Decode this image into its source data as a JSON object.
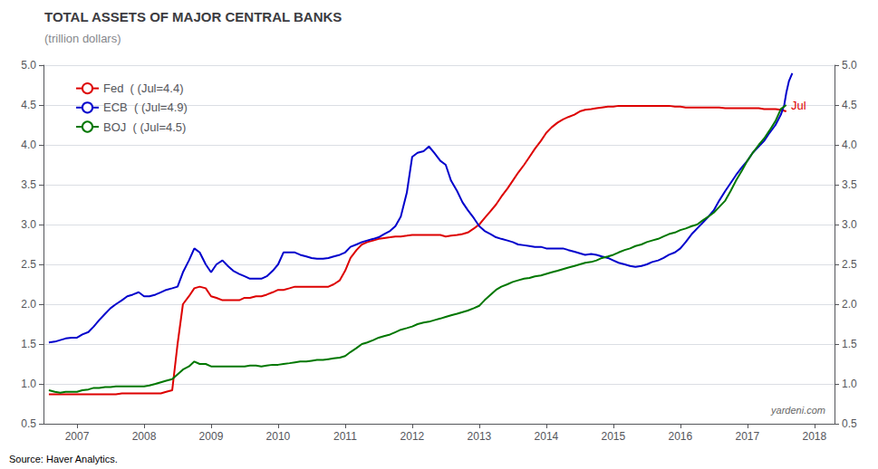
{
  "chart_data": {
    "type": "line",
    "title": "TOTAL ASSETS OF MAJOR CENTRAL BANKS",
    "subtitle": "(trillion dollars)",
    "source": "Source: Haver Analytics.",
    "watermark": "yardeni.com",
    "xlim": [
      2006.5,
      2018.3
    ],
    "xticks": [
      2007,
      2008,
      2009,
      2010,
      2011,
      2012,
      2013,
      2014,
      2015,
      2016,
      2017,
      2018
    ],
    "ylim": [
      0.5,
      5.0
    ],
    "yticks": [
      0.5,
      {
        "value": 1.0,
        "label": "1.0"
      },
      1.5,
      {
        "value": 2.0,
        "label": "2.0"
      },
      2.5,
      {
        "value": 3.0,
        "label": "3.0"
      },
      3.5,
      {
        "value": 4.0,
        "label": "4.0"
      },
      4.5,
      {
        "value": 5.0,
        "label": "5.0"
      }
    ],
    "y2lim": [
      0.5,
      5.0
    ],
    "y2ticks": [
      0.5,
      {
        "value": 1.0,
        "label": "1.0"
      },
      1.5,
      {
        "value": 2.0,
        "label": "2.0"
      },
      2.5,
      {
        "value": 3.0,
        "label": "3.0"
      },
      3.5,
      {
        "value": 4.0,
        "label": "4.0"
      },
      4.5,
      {
        "value": 5.0,
        "label": "5.0"
      }
    ],
    "grid": true,
    "legend": "upper left",
    "annotations": [
      {
        "text": "Jul",
        "x": 2017.65,
        "y": 4.5,
        "color": "#dd0000"
      }
    ],
    "series": [
      {
        "name": "Fed  ( (Jul=4.4)",
        "color": "#dd0000",
        "x": [
          2006.58,
          2006.67,
          2006.75,
          2006.83,
          2006.92,
          2007.0,
          2007.08,
          2007.17,
          2007.25,
          2007.33,
          2007.42,
          2007.5,
          2007.58,
          2007.67,
          2007.75,
          2007.83,
          2007.92,
          2008.0,
          2008.08,
          2008.17,
          2008.25,
          2008.33,
          2008.42,
          2008.5,
          2008.58,
          2008.67,
          2008.75,
          2008.83,
          2008.92,
          2009.0,
          2009.08,
          2009.17,
          2009.25,
          2009.33,
          2009.42,
          2009.5,
          2009.58,
          2009.67,
          2009.75,
          2009.83,
          2009.92,
          2010.0,
          2010.08,
          2010.17,
          2010.25,
          2010.33,
          2010.42,
          2010.5,
          2010.58,
          2010.67,
          2010.75,
          2010.83,
          2010.92,
          2011.0,
          2011.08,
          2011.17,
          2011.25,
          2011.33,
          2011.42,
          2011.5,
          2011.58,
          2011.67,
          2011.75,
          2011.83,
          2011.92,
          2012.0,
          2012.08,
          2012.17,
          2012.25,
          2012.33,
          2012.42,
          2012.5,
          2012.58,
          2012.67,
          2012.75,
          2012.83,
          2012.92,
          2013.0,
          2013.08,
          2013.17,
          2013.25,
          2013.33,
          2013.42,
          2013.5,
          2013.58,
          2013.67,
          2013.75,
          2013.83,
          2013.92,
          2014.0,
          2014.08,
          2014.17,
          2014.25,
          2014.33,
          2014.42,
          2014.5,
          2014.58,
          2014.67,
          2014.75,
          2014.83,
          2014.92,
          2015.0,
          2015.08,
          2015.17,
          2015.25,
          2015.33,
          2015.42,
          2015.5,
          2015.58,
          2015.67,
          2015.75,
          2015.83,
          2015.92,
          2016.0,
          2016.08,
          2016.17,
          2016.25,
          2016.33,
          2016.42,
          2016.5,
          2016.58,
          2016.67,
          2016.75,
          2016.83,
          2016.92,
          2017.0,
          2017.08,
          2017.17,
          2017.25,
          2017.33,
          2017.42,
          2017.5,
          2017.58
        ],
        "values": [
          0.87,
          0.87,
          0.87,
          0.87,
          0.87,
          0.87,
          0.87,
          0.87,
          0.87,
          0.87,
          0.87,
          0.87,
          0.87,
          0.88,
          0.88,
          0.88,
          0.88,
          0.88,
          0.88,
          0.88,
          0.88,
          0.9,
          0.92,
          1.5,
          2.0,
          2.1,
          2.2,
          2.22,
          2.2,
          2.1,
          2.08,
          2.05,
          2.05,
          2.05,
          2.05,
          2.08,
          2.08,
          2.1,
          2.1,
          2.12,
          2.15,
          2.18,
          2.18,
          2.2,
          2.22,
          2.22,
          2.22,
          2.22,
          2.22,
          2.22,
          2.22,
          2.25,
          2.3,
          2.42,
          2.58,
          2.68,
          2.75,
          2.78,
          2.8,
          2.82,
          2.83,
          2.84,
          2.85,
          2.85,
          2.86,
          2.87,
          2.87,
          2.87,
          2.87,
          2.87,
          2.87,
          2.85,
          2.86,
          2.87,
          2.88,
          2.9,
          2.95,
          3.0,
          3.08,
          3.17,
          3.25,
          3.35,
          3.45,
          3.55,
          3.65,
          3.75,
          3.85,
          3.95,
          4.05,
          4.15,
          4.22,
          4.28,
          4.32,
          4.35,
          4.38,
          4.42,
          4.44,
          4.45,
          4.46,
          4.47,
          4.48,
          4.48,
          4.49,
          4.49,
          4.49,
          4.49,
          4.49,
          4.49,
          4.49,
          4.49,
          4.49,
          4.49,
          4.48,
          4.48,
          4.47,
          4.47,
          4.47,
          4.47,
          4.47,
          4.47,
          4.47,
          4.46,
          4.46,
          4.46,
          4.46,
          4.46,
          4.46,
          4.46,
          4.45,
          4.45,
          4.45,
          4.44,
          4.42
        ]
      },
      {
        "name": "ECB  ( (Jul=4.9)",
        "color": "#0000cc",
        "x": [
          2006.58,
          2006.67,
          2006.75,
          2006.83,
          2006.92,
          2007.0,
          2007.08,
          2007.17,
          2007.25,
          2007.33,
          2007.42,
          2007.5,
          2007.58,
          2007.67,
          2007.75,
          2007.83,
          2007.92,
          2008.0,
          2008.08,
          2008.17,
          2008.25,
          2008.33,
          2008.42,
          2008.5,
          2008.58,
          2008.67,
          2008.75,
          2008.83,
          2008.92,
          2009.0,
          2009.08,
          2009.17,
          2009.25,
          2009.33,
          2009.42,
          2009.5,
          2009.58,
          2009.67,
          2009.75,
          2009.83,
          2009.92,
          2010.0,
          2010.08,
          2010.17,
          2010.25,
          2010.33,
          2010.42,
          2010.5,
          2010.58,
          2010.67,
          2010.75,
          2010.83,
          2010.92,
          2011.0,
          2011.08,
          2011.17,
          2011.25,
          2011.33,
          2011.42,
          2011.5,
          2011.58,
          2011.67,
          2011.75,
          2011.83,
          2011.92,
          2012.0,
          2012.08,
          2012.17,
          2012.25,
          2012.33,
          2012.42,
          2012.5,
          2012.58,
          2012.67,
          2012.75,
          2012.83,
          2012.92,
          2013.0,
          2013.08,
          2013.17,
          2013.25,
          2013.33,
          2013.42,
          2013.5,
          2013.58,
          2013.67,
          2013.75,
          2013.83,
          2013.92,
          2014.0,
          2014.08,
          2014.17,
          2014.25,
          2014.33,
          2014.42,
          2014.5,
          2014.58,
          2014.67,
          2014.75,
          2014.83,
          2014.92,
          2015.0,
          2015.08,
          2015.17,
          2015.25,
          2015.33,
          2015.42,
          2015.5,
          2015.58,
          2015.67,
          2015.75,
          2015.83,
          2015.92,
          2016.0,
          2016.08,
          2016.17,
          2016.25,
          2016.33,
          2016.42,
          2016.5,
          2016.58,
          2016.67,
          2016.75,
          2016.83,
          2016.92,
          2017.0,
          2017.08,
          2017.17,
          2017.25,
          2017.33,
          2017.42,
          2017.5,
          2017.55,
          2017.58,
          2017.62,
          2017.67
        ],
        "values": [
          1.52,
          1.53,
          1.55,
          1.57,
          1.58,
          1.58,
          1.62,
          1.65,
          1.72,
          1.8,
          1.88,
          1.95,
          2.0,
          2.05,
          2.1,
          2.12,
          2.15,
          2.1,
          2.1,
          2.12,
          2.15,
          2.18,
          2.2,
          2.22,
          2.4,
          2.55,
          2.7,
          2.65,
          2.5,
          2.4,
          2.5,
          2.55,
          2.48,
          2.42,
          2.38,
          2.35,
          2.32,
          2.32,
          2.32,
          2.35,
          2.42,
          2.5,
          2.65,
          2.65,
          2.65,
          2.62,
          2.6,
          2.58,
          2.57,
          2.57,
          2.58,
          2.6,
          2.62,
          2.65,
          2.72,
          2.75,
          2.78,
          2.8,
          2.82,
          2.84,
          2.88,
          2.92,
          2.98,
          3.1,
          3.4,
          3.85,
          3.9,
          3.92,
          3.98,
          3.9,
          3.8,
          3.75,
          3.55,
          3.42,
          3.28,
          3.18,
          3.08,
          2.98,
          2.92,
          2.88,
          2.84,
          2.82,
          2.8,
          2.78,
          2.75,
          2.74,
          2.73,
          2.72,
          2.72,
          2.7,
          2.7,
          2.7,
          2.7,
          2.68,
          2.66,
          2.64,
          2.62,
          2.63,
          2.62,
          2.6,
          2.58,
          2.55,
          2.52,
          2.5,
          2.48,
          2.47,
          2.48,
          2.5,
          2.53,
          2.55,
          2.58,
          2.62,
          2.65,
          2.7,
          2.78,
          2.88,
          2.95,
          3.02,
          3.1,
          3.18,
          3.3,
          3.42,
          3.52,
          3.62,
          3.72,
          3.8,
          3.9,
          3.98,
          4.05,
          4.15,
          4.25,
          4.38,
          4.5,
          4.65,
          4.8,
          4.9
        ]
      },
      {
        "name": "BOJ  ( (Jul=4.5)",
        "color": "#007700",
        "x": [
          2006.58,
          2006.67,
          2006.75,
          2006.83,
          2006.92,
          2007.0,
          2007.08,
          2007.17,
          2007.25,
          2007.33,
          2007.42,
          2007.5,
          2007.58,
          2007.67,
          2007.75,
          2007.83,
          2007.92,
          2008.0,
          2008.08,
          2008.17,
          2008.25,
          2008.33,
          2008.42,
          2008.5,
          2008.58,
          2008.67,
          2008.75,
          2008.83,
          2008.92,
          2009.0,
          2009.08,
          2009.17,
          2009.25,
          2009.33,
          2009.42,
          2009.5,
          2009.58,
          2009.67,
          2009.75,
          2009.83,
          2009.92,
          2010.0,
          2010.08,
          2010.17,
          2010.25,
          2010.33,
          2010.42,
          2010.5,
          2010.58,
          2010.67,
          2010.75,
          2010.83,
          2010.92,
          2011.0,
          2011.08,
          2011.17,
          2011.25,
          2011.33,
          2011.42,
          2011.5,
          2011.58,
          2011.67,
          2011.75,
          2011.83,
          2011.92,
          2012.0,
          2012.08,
          2012.17,
          2012.25,
          2012.33,
          2012.42,
          2012.5,
          2012.58,
          2012.67,
          2012.75,
          2012.83,
          2012.92,
          2013.0,
          2013.08,
          2013.17,
          2013.25,
          2013.33,
          2013.42,
          2013.5,
          2013.58,
          2013.67,
          2013.75,
          2013.83,
          2013.92,
          2014.0,
          2014.08,
          2014.17,
          2014.25,
          2014.33,
          2014.42,
          2014.5,
          2014.58,
          2014.67,
          2014.75,
          2014.83,
          2014.92,
          2015.0,
          2015.08,
          2015.17,
          2015.25,
          2015.33,
          2015.42,
          2015.5,
          2015.58,
          2015.67,
          2015.75,
          2015.83,
          2015.92,
          2016.0,
          2016.08,
          2016.17,
          2016.25,
          2016.33,
          2016.42,
          2016.5,
          2016.58,
          2016.67,
          2016.75,
          2016.83,
          2016.92,
          2017.0,
          2017.08,
          2017.17,
          2017.25,
          2017.33,
          2017.42,
          2017.5,
          2017.58
        ],
        "values": [
          0.92,
          0.9,
          0.89,
          0.9,
          0.9,
          0.9,
          0.92,
          0.93,
          0.95,
          0.95,
          0.96,
          0.96,
          0.97,
          0.97,
          0.97,
          0.97,
          0.97,
          0.97,
          0.98,
          1.0,
          1.02,
          1.04,
          1.06,
          1.12,
          1.18,
          1.22,
          1.28,
          1.25,
          1.25,
          1.22,
          1.22,
          1.22,
          1.22,
          1.22,
          1.22,
          1.22,
          1.23,
          1.23,
          1.22,
          1.23,
          1.24,
          1.24,
          1.25,
          1.26,
          1.27,
          1.28,
          1.28,
          1.29,
          1.3,
          1.3,
          1.31,
          1.32,
          1.33,
          1.35,
          1.4,
          1.45,
          1.5,
          1.52,
          1.55,
          1.58,
          1.6,
          1.62,
          1.65,
          1.68,
          1.7,
          1.72,
          1.75,
          1.77,
          1.78,
          1.8,
          1.82,
          1.84,
          1.86,
          1.88,
          1.9,
          1.92,
          1.95,
          1.98,
          2.05,
          2.12,
          2.18,
          2.22,
          2.25,
          2.28,
          2.3,
          2.32,
          2.33,
          2.35,
          2.36,
          2.38,
          2.4,
          2.42,
          2.44,
          2.46,
          2.48,
          2.5,
          2.52,
          2.53,
          2.55,
          2.58,
          2.6,
          2.62,
          2.65,
          2.68,
          2.7,
          2.73,
          2.75,
          2.78,
          2.8,
          2.82,
          2.85,
          2.88,
          2.9,
          2.93,
          2.95,
          2.98,
          3.0,
          3.05,
          3.1,
          3.15,
          3.22,
          3.3,
          3.42,
          3.55,
          3.68,
          3.8,
          3.9,
          4.0,
          4.08,
          4.18,
          4.3,
          4.45,
          4.5
        ]
      }
    ]
  }
}
